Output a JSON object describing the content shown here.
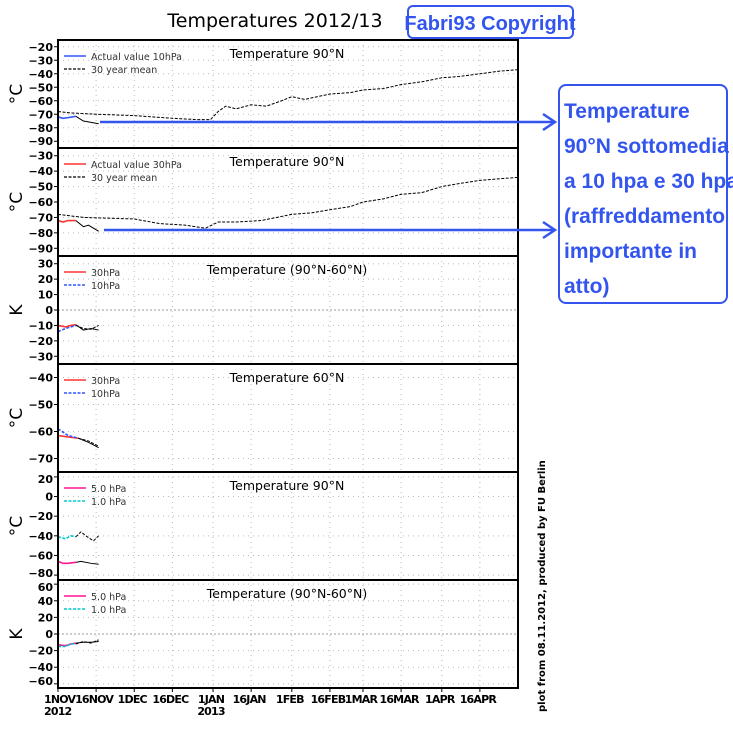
{
  "title": "Temperatures 2012/13",
  "copyright": "Fabri93 Copyright",
  "side_note": "plot from 08.11.2012, produced by FU Berlin",
  "annotation": [
    "Temperature",
    "90°N sottomedia",
    "a 10 hpa e 30 hpa",
    "(raffreddamento",
    "importante in",
    "atto)"
  ],
  "colors": {
    "annotation": "#3355ee",
    "red": "#ff3333",
    "blue": "#3355ff",
    "magenta": "#ff1493",
    "cyan": "#00c8c8",
    "grid": "#bbbbbb"
  },
  "chart_data": {
    "type": "line",
    "x_unit": "days since 1 Nov 2012 start",
    "xlim": [
      "1NOV2012",
      "1MAY2013"
    ],
    "x_ticks": [
      {
        "label": "1NOV",
        "sub": "2012",
        "day": 0
      },
      {
        "label": "16NOV",
        "day": 15
      },
      {
        "label": "1DEC",
        "day": 30
      },
      {
        "label": "16DEC",
        "day": 45
      },
      {
        "label": "1JAN",
        "sub": "2013",
        "day": 61
      },
      {
        "label": "16JAN",
        "day": 76
      },
      {
        "label": "1FEB",
        "day": 92
      },
      {
        "label": "16FEB",
        "day": 107
      },
      {
        "label": "1MAR",
        "day": 120
      },
      {
        "label": "16MAR",
        "day": 135
      },
      {
        "label": "1APR",
        "day": 151
      },
      {
        "label": "16APR",
        "day": 166
      }
    ],
    "grid": true,
    "panels": [
      {
        "title": "Temperature 90°N",
        "ylabel": "°C",
        "ylim": [
          -95,
          -15
        ],
        "yticks": [
          -20,
          -30,
          -40,
          -50,
          -60,
          -70,
          -80,
          -90
        ],
        "legend": [
          {
            "name": "Actual value 10hPa",
            "color": "blue",
            "dash": false
          },
          {
            "name": "30 year mean",
            "color": "black",
            "dash": true
          }
        ],
        "series": [
          {
            "color": "black",
            "dash": true,
            "points": [
              [
                0,
                -68
              ],
              [
                5,
                -69
              ],
              [
                15,
                -70
              ],
              [
                30,
                -71
              ],
              [
                45,
                -73
              ],
              [
                55,
                -74
              ],
              [
                60,
                -74
              ],
              [
                63,
                -68
              ],
              [
                66,
                -64
              ],
              [
                70,
                -66
              ],
              [
                76,
                -63
              ],
              [
                82,
                -64
              ],
              [
                88,
                -60
              ],
              [
                92,
                -57
              ],
              [
                97,
                -59
              ],
              [
                107,
                -55
              ],
              [
                115,
                -54
              ],
              [
                120,
                -52
              ],
              [
                128,
                -51
              ],
              [
                135,
                -48
              ],
              [
                143,
                -46
              ],
              [
                151,
                -43
              ],
              [
                158,
                -42
              ],
              [
                166,
                -40
              ],
              [
                174,
                -38
              ],
              [
                181,
                -37
              ]
            ]
          },
          {
            "color": "blue",
            "dash": false,
            "points": [
              [
                0,
                -72
              ],
              [
                2,
                -73
              ],
              [
                4,
                -72.5
              ],
              [
                7,
                -71.5
              ]
            ]
          },
          {
            "color": "black",
            "dash": false,
            "points": [
              [
                7,
                -71.5
              ],
              [
                10,
                -75
              ],
              [
                13,
                -76
              ],
              [
                16,
                -77
              ]
            ]
          }
        ]
      },
      {
        "title": "Temperature 90°N",
        "ylabel": "°C",
        "ylim": [
          -95,
          -25
        ],
        "yticks": [
          -30,
          -40,
          -50,
          -60,
          -70,
          -80,
          -90
        ],
        "legend": [
          {
            "name": "Actual value 30hPa",
            "color": "red",
            "dash": false
          },
          {
            "name": "30 year mean",
            "color": "black",
            "dash": true
          }
        ],
        "series": [
          {
            "color": "black",
            "dash": true,
            "points": [
              [
                0,
                -68
              ],
              [
                10,
                -70
              ],
              [
                30,
                -71
              ],
              [
                40,
                -74
              ],
              [
                50,
                -75
              ],
              [
                58,
                -77
              ],
              [
                63,
                -73
              ],
              [
                70,
                -73
              ],
              [
                80,
                -72
              ],
              [
                92,
                -68
              ],
              [
                100,
                -67
              ],
              [
                107,
                -65
              ],
              [
                115,
                -63
              ],
              [
                120,
                -60
              ],
              [
                128,
                -58
              ],
              [
                135,
                -55
              ],
              [
                143,
                -54
              ],
              [
                151,
                -50
              ],
              [
                158,
                -48
              ],
              [
                166,
                -46
              ],
              [
                181,
                -44
              ]
            ]
          },
          {
            "color": "red",
            "dash": false,
            "points": [
              [
                0,
                -72
              ],
              [
                2,
                -73
              ],
              [
                4,
                -72
              ],
              [
                7,
                -72
              ]
            ]
          },
          {
            "color": "black",
            "dash": false,
            "points": [
              [
                7,
                -72
              ],
              [
                10,
                -76
              ],
              [
                12,
                -75
              ],
              [
                16,
                -79
              ]
            ]
          }
        ]
      },
      {
        "title": "Temperature (90°N-60°N)",
        "ylabel": "K",
        "ylim": [
          -35,
          35
        ],
        "yticks": [
          30,
          20,
          10,
          0,
          -10,
          -20,
          -30
        ],
        "zero_line": true,
        "legend": [
          {
            "name": "30hPa",
            "color": "red",
            "dash": false
          },
          {
            "name": "10hPa",
            "color": "blue",
            "dash": true
          }
        ],
        "series": [
          {
            "color": "red",
            "dash": false,
            "points": [
              [
                0,
                -10
              ],
              [
                3,
                -11
              ],
              [
                5,
                -10
              ],
              [
                7,
                -9.5
              ]
            ]
          },
          {
            "color": "blue",
            "dash": true,
            "points": [
              [
                0,
                -14
              ],
              [
                3,
                -12
              ],
              [
                5,
                -11
              ],
              [
                7,
                -10
              ]
            ]
          },
          {
            "color": "black",
            "dash": false,
            "points": [
              [
                7,
                -9.5
              ],
              [
                10,
                -13
              ],
              [
                13,
                -12
              ],
              [
                16,
                -13
              ]
            ]
          },
          {
            "color": "black",
            "dash": true,
            "points": [
              [
                7,
                -10
              ],
              [
                10,
                -12
              ],
              [
                13,
                -12.5
              ],
              [
                16,
                -10
              ]
            ]
          }
        ]
      },
      {
        "title": "",
        "ylabel": "°C",
        "ylim": [
          -75,
          -35
        ],
        "yticks": [
          -40,
          -50,
          -60,
          -70
        ],
        "label_title": "Temperature 60°N",
        "legend": [
          {
            "name": "30hPa",
            "color": "red",
            "dash": false
          },
          {
            "name": "10hPa",
            "color": "blue",
            "dash": true
          }
        ],
        "series": [
          {
            "color": "red",
            "dash": false,
            "points": [
              [
                0,
                -61.5
              ],
              [
                4,
                -62
              ],
              [
                8,
                -62.5
              ]
            ]
          },
          {
            "color": "blue",
            "dash": true,
            "points": [
              [
                0,
                -59
              ],
              [
                4,
                -61.5
              ],
              [
                8,
                -62.5
              ]
            ]
          },
          {
            "color": "black",
            "dash": false,
            "points": [
              [
                8,
                -62.5
              ],
              [
                12,
                -64
              ],
              [
                16,
                -66
              ]
            ]
          },
          {
            "color": "black",
            "dash": true,
            "points": [
              [
                8,
                -62.5
              ],
              [
                12,
                -63.5
              ],
              [
                16,
                -65.5
              ]
            ]
          }
        ]
      },
      {
        "title": "Temperature 90°N",
        "ylabel": "°C",
        "ylim": [
          -85,
          25
        ],
        "yticks": [
          20,
          0,
          -20,
          -40,
          -60,
          -80
        ],
        "legend": [
          {
            "name": "5.0 hPa",
            "color": "magenta",
            "dash": false
          },
          {
            "name": "1.0 hPa",
            "color": "cyan",
            "dash": true
          }
        ],
        "series": [
          {
            "color": "magenta",
            "dash": false,
            "points": [
              [
                0,
                -66
              ],
              [
                2,
                -68
              ],
              [
                4,
                -68
              ],
              [
                7,
                -67
              ]
            ]
          },
          {
            "color": "cyan",
            "dash": true,
            "points": [
              [
                0,
                -41
              ],
              [
                3,
                -43
              ],
              [
                5,
                -40
              ],
              [
                7,
                -41
              ]
            ]
          },
          {
            "color": "black",
            "dash": false,
            "points": [
              [
                7,
                -67
              ],
              [
                9,
                -66
              ],
              [
                13,
                -68
              ],
              [
                16,
                -69
              ]
            ]
          },
          {
            "color": "black",
            "dash": true,
            "points": [
              [
                7,
                -41
              ],
              [
                9,
                -36
              ],
              [
                12,
                -42
              ],
              [
                14,
                -45
              ],
              [
                16,
                -40
              ]
            ]
          }
        ]
      },
      {
        "title": "Temperature (90°N-60°N)",
        "ylabel": "K",
        "ylim": [
          -65,
          65
        ],
        "yticks": [
          60,
          40,
          20,
          0,
          -20,
          -40,
          -60
        ],
        "zero_line": true,
        "legend": [
          {
            "name": "5.0 hPa",
            "color": "magenta",
            "dash": false
          },
          {
            "name": "1.0 hPa",
            "color": "cyan",
            "dash": true
          }
        ],
        "series": [
          {
            "color": "magenta",
            "dash": false,
            "points": [
              [
                0,
                -13
              ],
              [
                3,
                -14
              ],
              [
                5,
                -12
              ],
              [
                7,
                -11
              ]
            ]
          },
          {
            "color": "cyan",
            "dash": true,
            "points": [
              [
                0,
                -15
              ],
              [
                3,
                -15
              ],
              [
                5,
                -12
              ],
              [
                7,
                -12
              ]
            ]
          },
          {
            "color": "black",
            "dash": false,
            "points": [
              [
                7,
                -11
              ],
              [
                10,
                -10
              ],
              [
                13,
                -10
              ],
              [
                16,
                -9
              ]
            ]
          },
          {
            "color": "black",
            "dash": true,
            "points": [
              [
                7,
                -12
              ],
              [
                10,
                -9
              ],
              [
                13,
                -11
              ],
              [
                16,
                -7
              ]
            ]
          }
        ]
      }
    ]
  }
}
